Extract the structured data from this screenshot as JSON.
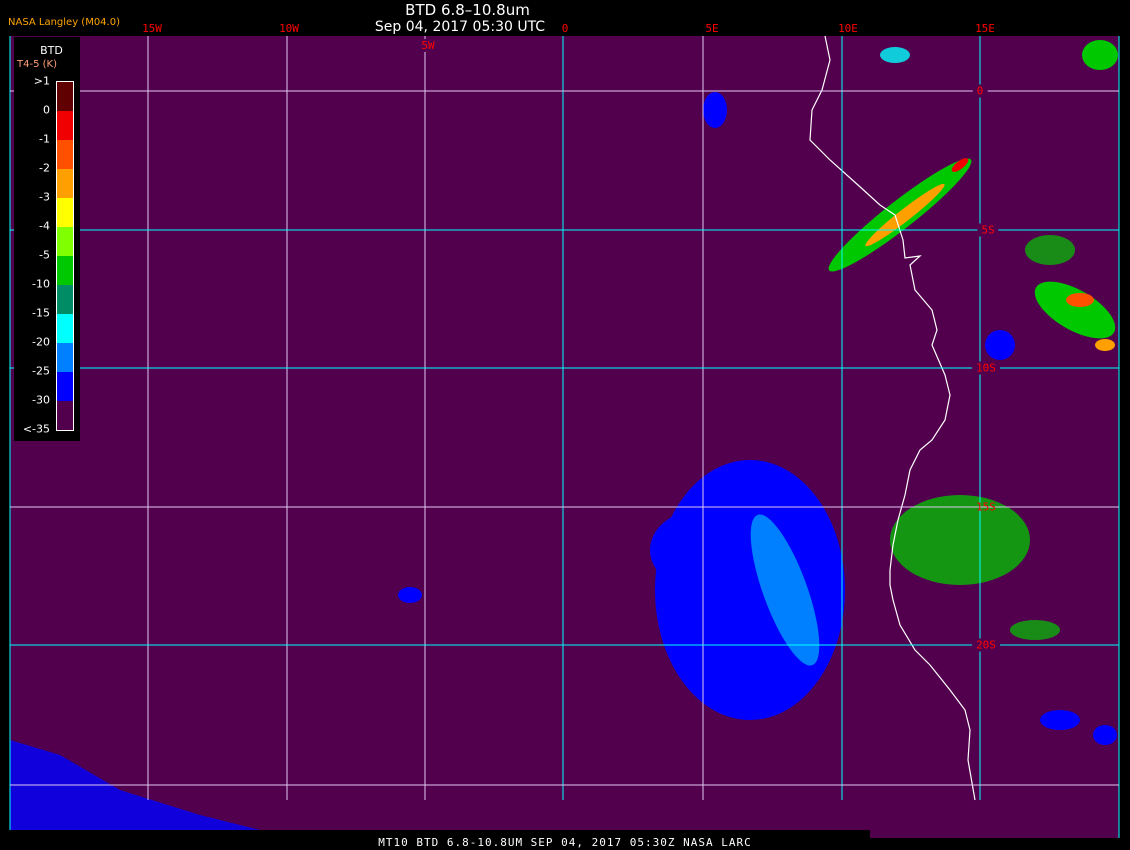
{
  "header": {
    "title": "BTD 6.8–10.8um",
    "subtitle": "Sep 04, 2017 05:30 UTC",
    "org": "NASA Langley (M04.0)"
  },
  "grid": {
    "longitudes": [
      "15W",
      "10W",
      "5W",
      "0",
      "5E",
      "10E",
      "15E"
    ],
    "latitudes": [
      "0",
      "5S",
      "10S",
      "15S",
      "20S"
    ],
    "line_color": "#00ffff"
  },
  "legend": {
    "title": "BTD",
    "subtitle": "T4-5 (K)",
    "labels": [
      ">1",
      "0",
      "-1",
      "-2",
      "-3",
      "-4",
      "-5",
      "-10",
      "-15",
      "-20",
      "-25",
      "-30",
      "<-35"
    ],
    "colors": [
      "#600000",
      "#f00000",
      "#ff5000",
      "#ffa000",
      "#ffff00",
      "#80ff00",
      "#00c800",
      "#008c64",
      "#00ffff",
      "#0080ff",
      "#0000ff",
      "#52004e"
    ]
  },
  "map": {
    "background": "#52004e",
    "coastline_color": "#ffffff"
  },
  "footer": {
    "text": "MT10  BTD 6.8-10.8UM   SEP 04, 2017 05:30Z   NASA LARC"
  }
}
